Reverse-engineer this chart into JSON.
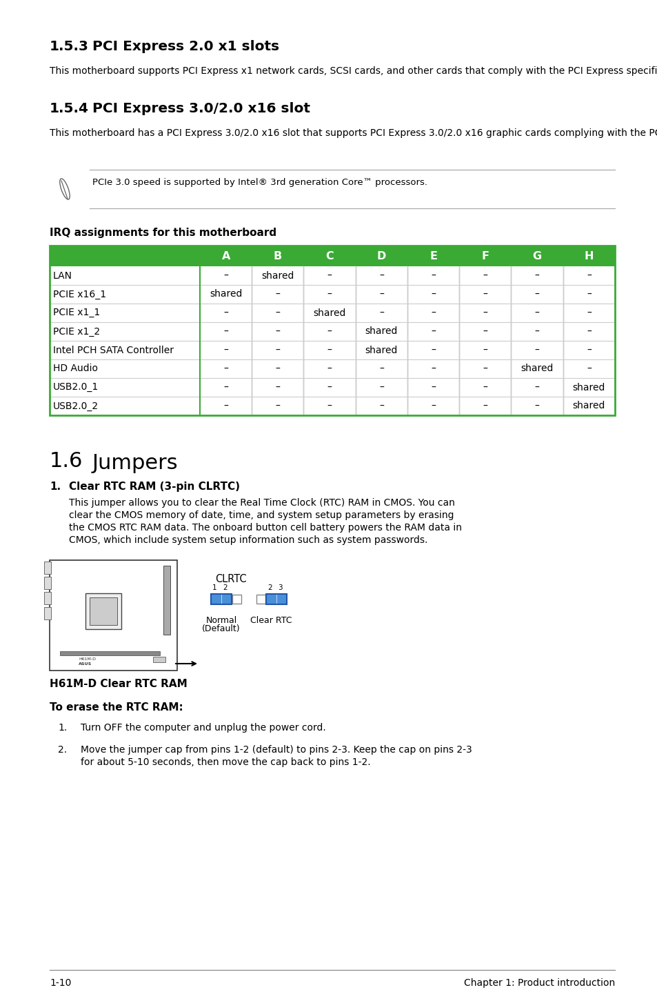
{
  "page_bg": "#ffffff",
  "section_153_title_num": "1.5.3",
  "section_153_title_text": "PCI Express 2.0 x1 slots",
  "section_153_body": "This motherboard supports PCI Express x1 network cards, SCSI cards, and other cards that comply with the PCI Express specifications.",
  "section_154_title_num": "1.5.4",
  "section_154_title_text": "PCI Express 3.0/2.0 x16 slot",
  "section_154_body": "This motherboard has a PCI Express 3.0/2.0 x16 slot that supports PCI Express 3.0/2.0 x16 graphic cards complying with the PCI Express specifications.",
  "note_text": "PCIe 3.0 speed is supported by Intel® 3rd generation Core™ processors.",
  "irq_title": "IRQ assignments for this motherboard",
  "table_header": [
    "",
    "A",
    "B",
    "C",
    "D",
    "E",
    "F",
    "G",
    "H"
  ],
  "table_rows": [
    [
      "LAN",
      "–",
      "shared",
      "–",
      "–",
      "–",
      "–",
      "–",
      "–"
    ],
    [
      "PCIE x16_1",
      "shared",
      "–",
      "–",
      "–",
      "–",
      "–",
      "–",
      "–"
    ],
    [
      "PCIE x1_1",
      "–",
      "–",
      "shared",
      "–",
      "–",
      "–",
      "–",
      "–"
    ],
    [
      "PCIE x1_2",
      "–",
      "–",
      "–",
      "shared",
      "–",
      "–",
      "–",
      "–"
    ],
    [
      "Intel PCH SATA Controller",
      "–",
      "–",
      "–",
      "shared",
      "–",
      "–",
      "–",
      "–"
    ],
    [
      "HD Audio",
      "–",
      "–",
      "–",
      "–",
      "–",
      "–",
      "shared",
      "–"
    ],
    [
      "USB2.0_1",
      "–",
      "–",
      "–",
      "–",
      "–",
      "–",
      "–",
      "shared"
    ],
    [
      "USB2.0_2",
      "–",
      "–",
      "–",
      "–",
      "–",
      "–",
      "–",
      "shared"
    ]
  ],
  "table_header_bg": "#3aaa35",
  "table_header_fg": "#ffffff",
  "table_border_color": "#3aaa35",
  "table_line_color": "#cccccc",
  "section_16_title_num": "1.6",
  "section_16_title_text": "Jumpers",
  "section_16_sub": "Clear RTC RAM (3-pin CLRTC)",
  "section_16_body1": "This jumper allows you to clear the Real Time Clock (RTC) RAM in CMOS. You can",
  "section_16_body2": "clear the CMOS memory of date, time, and system setup parameters by erasing",
  "section_16_body3": "the CMOS RTC RAM data. The onboard button cell battery powers the RAM data in",
  "section_16_body4": "CMOS, which include system setup information such as system passwords.",
  "diagram_label": "CLRTC",
  "diagram_normal_label1": "Normal",
  "diagram_normal_label2": "(Default)",
  "diagram_clear_label": "Clear RTC",
  "board_caption": "H61M-D Clear RTC RAM",
  "erase_title": "To erase the RTC RAM:",
  "erase_step1": "Turn OFF the computer and unplug the power cord.",
  "erase_step2a": "Move the jumper cap from pins 1-2 (default) to pins 2-3. Keep the cap on pins 2-3",
  "erase_step2b": "for about 5-10 seconds, then move the cap back to pins 1-2.",
  "footer_left": "1-10",
  "footer_right": "Chapter 1: Product introduction",
  "blue": "#4a90d9",
  "green": "#3aaa35"
}
